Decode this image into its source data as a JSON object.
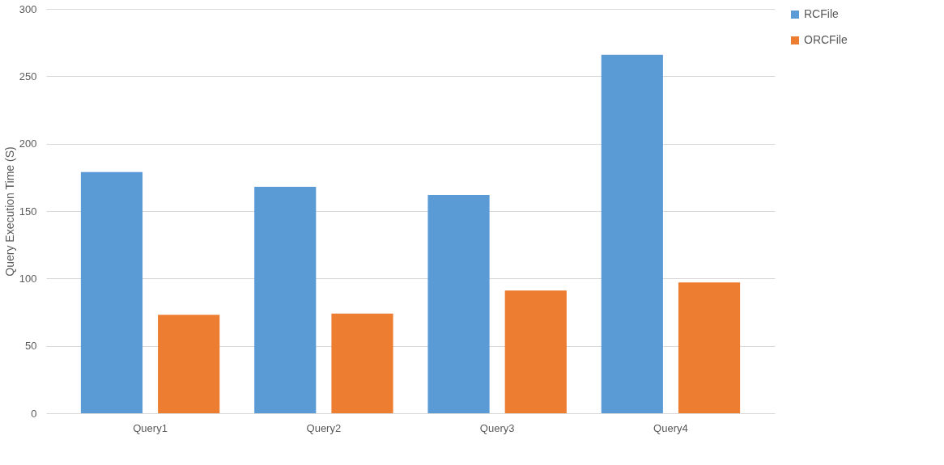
{
  "chart_data": {
    "type": "bar",
    "ylabel": "Query Execution Time  (S)",
    "categories": [
      "Query1",
      "Query2",
      "Query3",
      "Query4"
    ],
    "series": [
      {
        "name": "RCFile",
        "color": "#5b9bd5",
        "values": [
          179,
          168,
          162,
          266
        ]
      },
      {
        "name": "ORCFile",
        "color": "#ed7d31",
        "values": [
          73,
          74,
          91,
          97
        ]
      }
    ],
    "ylim": [
      0,
      300
    ],
    "yticks": [
      0,
      50,
      100,
      150,
      200,
      250,
      300
    ],
    "grid": "y",
    "legend": "right"
  }
}
